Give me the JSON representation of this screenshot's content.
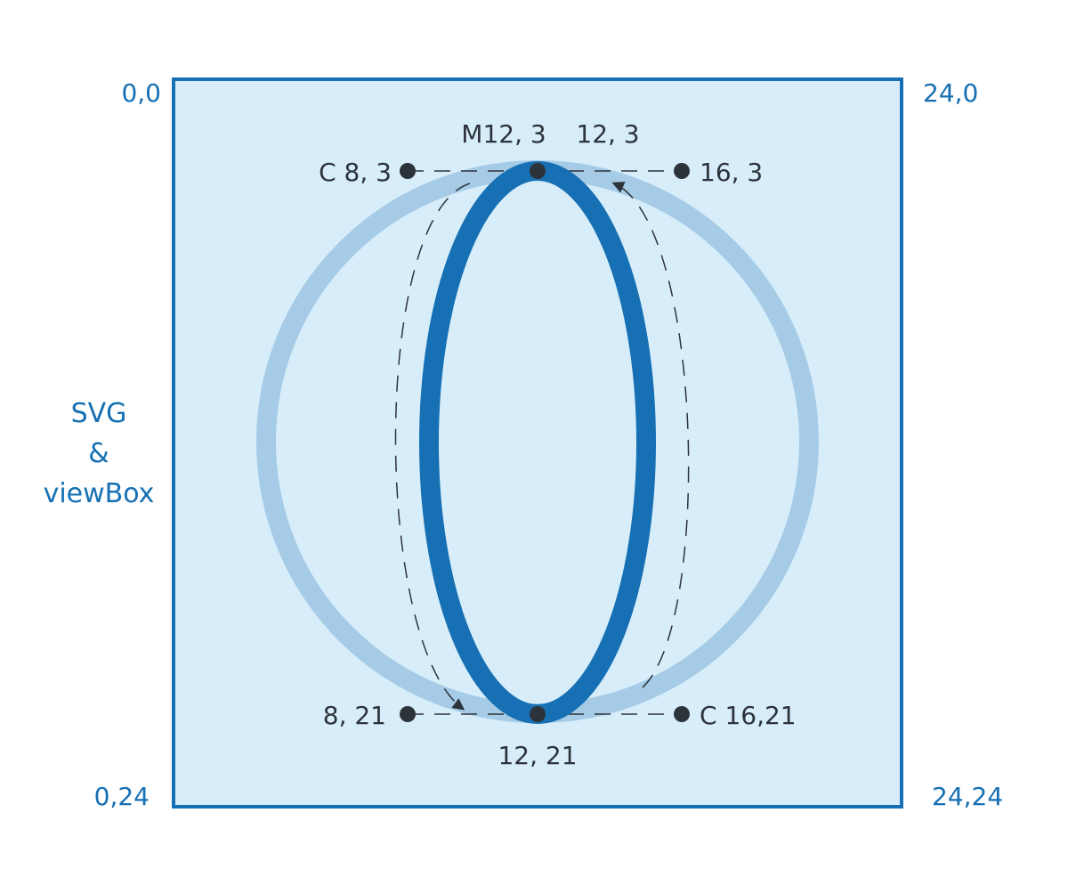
{
  "colors": {
    "frame_fill": "#d7eefa",
    "frame_stroke": "#1670b3",
    "circle_stroke": "#a6cbe6",
    "ellipse_stroke": "#1670b3",
    "dash_stroke": "#2d333a",
    "point_fill": "#2d333a",
    "corner_text": "#1670b3",
    "label_text": "#2d333a"
  },
  "corners": {
    "top_left": "0,0",
    "top_right": "24,0",
    "bottom_left": "0,24",
    "bottom_right": "24,24"
  },
  "side_label": {
    "line1": "SVG",
    "line2": "&",
    "line3": "viewBox"
  },
  "path": {
    "start_label": "M12, 3",
    "start_repeat_label": "12, 3",
    "c1_cp1_label": "C 8, 3",
    "c1_cp2_label": "8, 21",
    "c1_end_label": "12, 21",
    "c2_cp1_label": "C 16,21",
    "c2_cp2_label": "16, 3"
  }
}
